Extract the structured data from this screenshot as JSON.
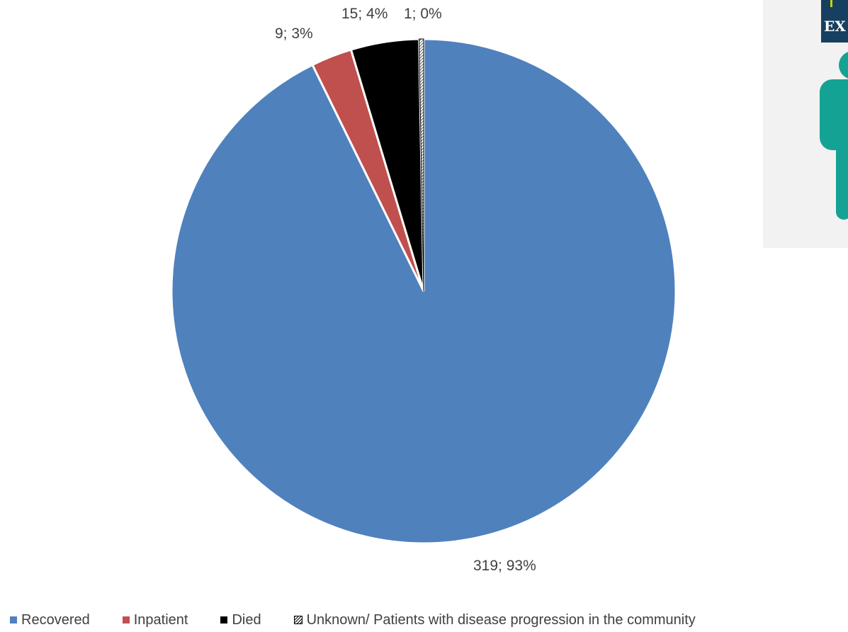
{
  "chart_data": {
    "type": "pie",
    "title": "",
    "start_angle_deg": 0,
    "direction": "clockwise",
    "slices": [
      {
        "name": "Recovered",
        "value": 319,
        "label": "319; 93%",
        "color": "#4F81BD",
        "pattern": "solid"
      },
      {
        "name": "Inpatient",
        "value": 9,
        "label": "9; 3%",
        "color": "#C0504D",
        "pattern": "solid"
      },
      {
        "name": "Died",
        "value": 15,
        "label": "15; 4%",
        "color": "#000000",
        "pattern": "solid"
      },
      {
        "name": "Unknown/ Patients with disease progression in the community",
        "value": 1,
        "label": "1; 0%",
        "color": "#000000",
        "pattern": "hatched"
      }
    ],
    "legend_position": "bottom"
  },
  "colors": {
    "background": "#FFFFFF",
    "text": "#404040",
    "side_panel": "#F2F2F2",
    "side_figure": "#14A294",
    "side_logo_bg": "#173F5F"
  },
  "side_graphic": {
    "logo_text": "EX",
    "icon": "person-icon"
  }
}
